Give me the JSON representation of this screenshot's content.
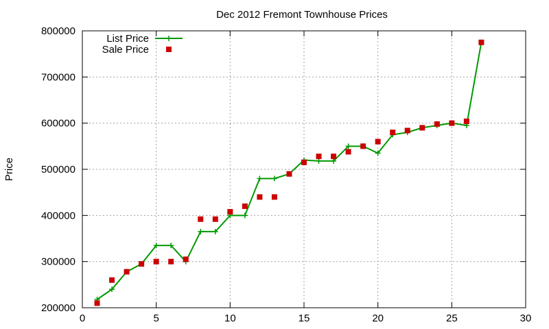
{
  "chart_data": {
    "type": "line",
    "title": "Dec 2012 Fremont Townhouse Prices",
    "xlabel": "",
    "ylabel": "Price",
    "xlim": [
      0,
      30
    ],
    "ylim": [
      200000,
      800000
    ],
    "xticks": [
      "0",
      "5",
      "10",
      "15",
      "20",
      "25",
      "30"
    ],
    "xtick_values": [
      0,
      5,
      10,
      15,
      20,
      25,
      30
    ],
    "yticks": [
      "200000",
      "300000",
      "400000",
      "500000",
      "600000",
      "700000",
      "800000"
    ],
    "ytick_values": [
      200000,
      300000,
      400000,
      500000,
      600000,
      700000,
      800000
    ],
    "grid": true,
    "legend": "top-left",
    "series": [
      {
        "name": "List Price",
        "style": "line+cross",
        "color": "#009900",
        "x": [
          1,
          2,
          3,
          4,
          5,
          6,
          7,
          8,
          9,
          10,
          11,
          12,
          13,
          14,
          15,
          16,
          17,
          18,
          19,
          20,
          21,
          22,
          23,
          24,
          25,
          26,
          27
        ],
        "y": [
          218000,
          240000,
          278000,
          295000,
          335000,
          335000,
          300000,
          365000,
          365000,
          400000,
          400000,
          480000,
          480000,
          490000,
          520000,
          518000,
          518000,
          550000,
          550000,
          535000,
          575000,
          580000,
          590000,
          595000,
          600000,
          595000,
          775000
        ]
      },
      {
        "name": "Sale Price",
        "style": "square",
        "color": "#cc0000",
        "x": [
          1,
          2,
          3,
          4,
          5,
          6,
          7,
          8,
          9,
          10,
          11,
          12,
          13,
          14,
          15,
          16,
          17,
          18,
          19,
          20,
          21,
          22,
          23,
          24,
          25,
          26,
          27
        ],
        "y": [
          210000,
          260000,
          278000,
          295000,
          300000,
          300000,
          305000,
          392000,
          392000,
          408000,
          420000,
          440000,
          440000,
          490000,
          515000,
          528000,
          528000,
          538000,
          550000,
          560000,
          580000,
          584000,
          590000,
          598000,
          600000,
          604000,
          775000
        ]
      }
    ]
  }
}
